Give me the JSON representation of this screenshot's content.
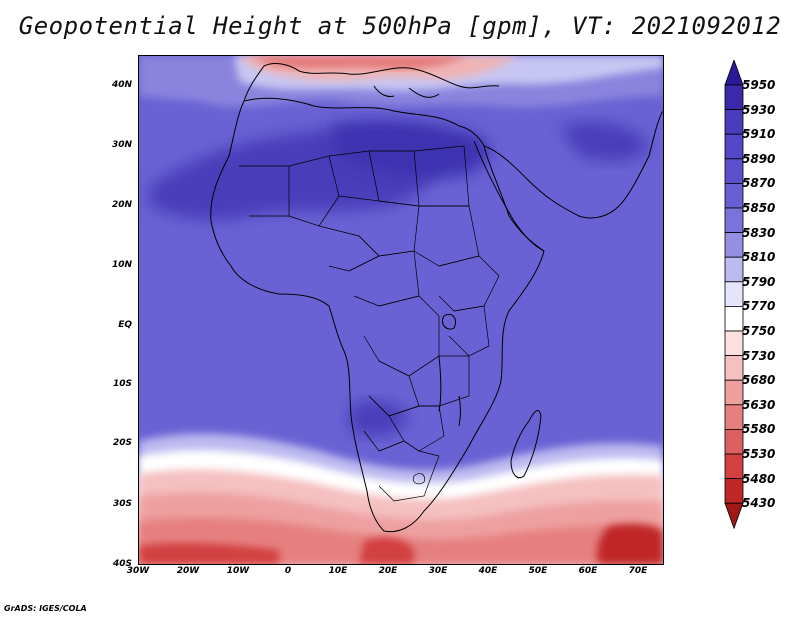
{
  "title": "Geopotential Height at 500hPa [gpm], VT: 2021092012",
  "footer": "GrADS: IGES/COLA",
  "lat_labels": [
    "40N",
    "30N",
    "20N",
    "10N",
    "EQ",
    "10S",
    "20S",
    "30S",
    "40S"
  ],
  "lon_labels": [
    "30W",
    "20W",
    "10W",
    "0",
    "10E",
    "20E",
    "30E",
    "40E",
    "50E",
    "60E",
    "70E"
  ],
  "colorbar": {
    "labels": [
      "5950",
      "5930",
      "5910",
      "5890",
      "5870",
      "5850",
      "5830",
      "5810",
      "5790",
      "5770",
      "5750",
      "5730",
      "5680",
      "5630",
      "5580",
      "5530",
      "5480",
      "5430"
    ],
    "colors": [
      "#2a1a9a",
      "#3a2aaa",
      "#4a3cba",
      "#5446c6",
      "#5c50cc",
      "#6860d2",
      "#7a74da",
      "#9590e2",
      "#bdbaf0",
      "#e4e4fa",
      "#ffffff",
      "#fbe0e0",
      "#f5c0c0",
      "#eea0a0",
      "#e68080",
      "#dd6060",
      "#d24040",
      "#c02828",
      "#a01818"
    ]
  }
}
